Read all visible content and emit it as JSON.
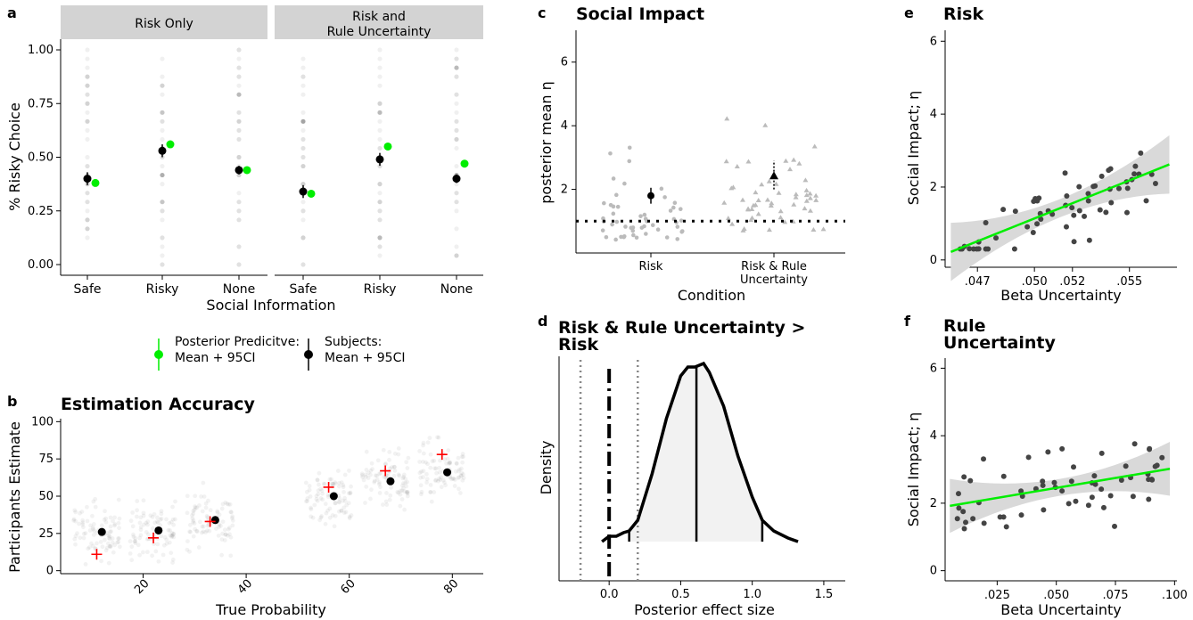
{
  "panel_letters": {
    "a": "a",
    "b": "b",
    "c": "c",
    "d": "d",
    "e": "e",
    "f": "f"
  },
  "legend": {
    "posterior_label_1": "Posterior Predicitve:",
    "posterior_label_2": "Mean + 95CI",
    "subjects_label_1": "Subjects:",
    "subjects_label_2": "Mean + 95CI",
    "posterior_color": "#00ee00",
    "subjects_color": "#000000"
  },
  "chart_data": [
    {
      "panel": "a",
      "type": "scatter",
      "facets": [
        "Risk Only",
        "Risk and\nRule Uncertainty"
      ],
      "categories": [
        "Safe",
        "Risky",
        "None"
      ],
      "xlabel": "Social Information",
      "ylabel": "% Risky Choice",
      "ylim": [
        0,
        1
      ],
      "yticks": [
        "0.00",
        "0.25",
        "0.50",
        "0.75",
        "1.00"
      ],
      "series": [
        {
          "name": "Subjects: Mean + 95CI",
          "color": "#000000",
          "facet_values": [
            [
              0.4,
              0.53,
              0.44
            ],
            [
              0.34,
              0.49,
              0.4
            ]
          ],
          "ci_half": [
            [
              0.03,
              0.03,
              0.02
            ],
            [
              0.03,
              0.03,
              0.02
            ]
          ]
        },
        {
          "name": "Posterior Predicitve: Mean + 95CI",
          "color": "#00ee00",
          "facet_values": [
            [
              0.38,
              0.56,
              0.44
            ],
            [
              0.33,
              0.55,
              0.47
            ]
          ]
        }
      ]
    },
    {
      "panel": "b",
      "type": "scatter",
      "title": "Estimation Accuracy",
      "xlabel": "True Probability",
      "ylabel": "Participants Estimate",
      "xlim": [
        4,
        86
      ],
      "ylim": [
        -2,
        102
      ],
      "xticks": [
        "20",
        "40",
        "60",
        "80"
      ],
      "yticks": [
        "0",
        "25",
        "50",
        "75",
        "100"
      ],
      "true_probability": [
        11,
        22,
        33,
        56,
        67,
        78
      ],
      "participant_mean": [
        26,
        27,
        34,
        50,
        60,
        66
      ],
      "true_value_marker": [
        11,
        22,
        33,
        56,
        67,
        78
      ],
      "marker_colors": {
        "mean": "#000000",
        "true": "#ff0000"
      }
    },
    {
      "panel": "c",
      "type": "scatter",
      "title": "Social Impact",
      "xlabel": "Condition",
      "ylabel": "posterior mean η",
      "categories": [
        "Risk",
        "Risk & Rule\nUncertainty"
      ],
      "ylim": [
        0,
        7
      ],
      "yticks": [
        "2",
        "4",
        "6"
      ],
      "reference_line": 1,
      "means": [
        1.8,
        2.4
      ],
      "ci": [
        [
          1.55,
          2.05
        ],
        [
          2.0,
          2.9
        ]
      ]
    },
    {
      "panel": "d",
      "type": "area",
      "title": "Risk & Rule Uncertainty >\nRisk",
      "xlabel": "Posterior effect size",
      "ylabel": "Density",
      "xlim": [
        -0.35,
        1.65
      ],
      "xticks": [
        "0.0",
        "0.5",
        "1.0",
        "1.5"
      ],
      "density_x": [
        -0.05,
        0.0,
        0.05,
        0.1,
        0.14,
        0.2,
        0.3,
        0.4,
        0.5,
        0.55,
        0.6,
        0.66,
        0.7,
        0.8,
        0.9,
        1.0,
        1.07,
        1.15,
        1.25,
        1.32
      ],
      "density_y": [
        0.0,
        0.03,
        0.03,
        0.05,
        0.06,
        0.12,
        0.38,
        0.69,
        0.93,
        0.98,
        0.98,
        1.0,
        0.95,
        0.76,
        0.48,
        0.25,
        0.12,
        0.06,
        0.02,
        0.0
      ],
      "interval_lines": [
        0.14,
        0.61,
        1.07
      ],
      "reference_zero": 0.0,
      "rope": [
        -0.2,
        0.2
      ]
    },
    {
      "panel": "e",
      "type": "scatter",
      "title": "Risk",
      "xlabel": "Beta Uncertainty",
      "ylabel": "Social Impact; η",
      "xlim": [
        0.0453,
        0.0575
      ],
      "ylim": [
        -0.2,
        6.3
      ],
      "xticks": [
        ".047",
        ".050",
        ".052",
        ".055"
      ],
      "yticks": [
        "0",
        "2",
        "4",
        "6"
      ],
      "fit_line": {
        "x": [
          0.0456,
          0.0571
        ],
        "y": [
          0.22,
          2.62
        ],
        "color": "#00ee00"
      }
    },
    {
      "panel": "f",
      "type": "scatter",
      "title": "Rule\nUncertainty",
      "xlabel": "Beta Uncertainty",
      "ylabel": "Social Impact; η",
      "xlim": [
        0.003,
        0.101
      ],
      "ylim": [
        -0.3,
        6.3
      ],
      "xticks": [
        ".025",
        ".050",
        ".075",
        ".100"
      ],
      "yticks": [
        "0",
        "2",
        "4",
        "6"
      ],
      "fit_line": {
        "x": [
          0.005,
          0.098
        ],
        "y": [
          1.92,
          3.02
        ],
        "color": "#00ee00"
      }
    }
  ]
}
